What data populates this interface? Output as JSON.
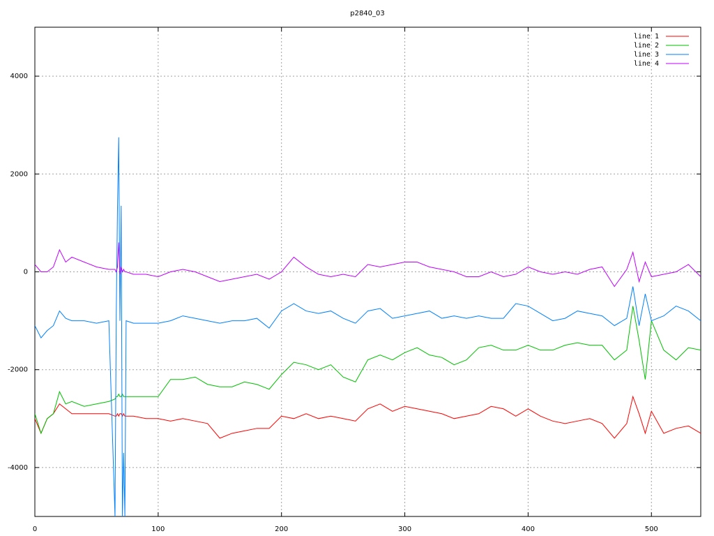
{
  "chart_data": {
    "type": "line",
    "title": "p2840_03",
    "x": [
      0,
      5,
      10,
      15,
      20,
      25,
      30,
      40,
      50,
      60,
      65,
      66,
      67,
      68,
      69,
      70,
      71,
      72,
      73,
      74,
      80,
      90,
      100,
      110,
      120,
      130,
      140,
      150,
      160,
      170,
      180,
      190,
      200,
      210,
      220,
      230,
      240,
      250,
      260,
      270,
      280,
      290,
      300,
      310,
      320,
      330,
      340,
      350,
      360,
      370,
      380,
      390,
      400,
      410,
      420,
      430,
      440,
      450,
      460,
      470,
      480,
      485,
      490,
      495,
      500,
      510,
      520,
      530,
      540
    ],
    "series": [
      {
        "name": "line 1",
        "color": "#ff0000",
        "values": [
          -3000,
          -3300,
          -3000,
          -2900,
          -2700,
          -2800,
          -2900,
          -2900,
          -2900,
          -2900,
          -2950,
          -2950,
          -2900,
          -2950,
          -2900,
          -2900,
          -2950,
          -2900,
          -2950,
          -2950,
          -2950,
          -3000,
          -3000,
          -3050,
          -3000,
          -3050,
          -3100,
          -3400,
          -3300,
          -3250,
          -3200,
          -3200,
          -2950,
          -3000,
          -2900,
          -3000,
          -2950,
          -3000,
          -3050,
          -2800,
          -2700,
          -2850,
          -2750,
          -2800,
          -2850,
          -2900,
          -3000,
          -2950,
          -2900,
          -2750,
          -2800,
          -2950,
          -2800,
          -2950,
          -3050,
          -3100,
          -3050,
          -3000,
          -3100,
          -3400,
          -3100,
          -2550,
          -2900,
          -3300,
          -2850,
          -3300,
          -3200,
          -3150,
          -3300
        ]
      },
      {
        "name": "line 2",
        "color": "#00c000",
        "values": [
          -2900,
          -3300,
          -3000,
          -2900,
          -2450,
          -2700,
          -2650,
          -2750,
          -2700,
          -2650,
          -2600,
          -2550,
          -2550,
          -2500,
          -2550,
          -2550,
          -2500,
          -2550,
          -2550,
          -2550,
          -2550,
          -2550,
          -2550,
          -2200,
          -2200,
          -2150,
          -2300,
          -2350,
          -2350,
          -2250,
          -2300,
          -2400,
          -2100,
          -1850,
          -1900,
          -2000,
          -1900,
          -2150,
          -2250,
          -1800,
          -1700,
          -1800,
          -1650,
          -1550,
          -1700,
          -1750,
          -1900,
          -1800,
          -1550,
          -1500,
          -1600,
          -1600,
          -1500,
          -1600,
          -1600,
          -1500,
          -1450,
          -1500,
          -1500,
          -1800,
          -1600,
          -700,
          -1400,
          -2200,
          -1000,
          -1600,
          -1800,
          -1550,
          -1600
        ]
      },
      {
        "name": "line 3",
        "color": "#0080ff",
        "values": [
          -1100,
          -1350,
          -1200,
          -1100,
          -800,
          -950,
          -1000,
          -1000,
          -1050,
          -1000,
          -5000,
          -900,
          1300,
          2750,
          -1000,
          1350,
          -5000,
          -3700,
          -5000,
          -1000,
          -1050,
          -1050,
          -1050,
          -1000,
          -900,
          -950,
          -1000,
          -1050,
          -1000,
          -1000,
          -950,
          -1150,
          -800,
          -650,
          -800,
          -850,
          -800,
          -950,
          -1050,
          -800,
          -750,
          -950,
          -900,
          -850,
          -800,
          -950,
          -900,
          -950,
          -900,
          -950,
          -950,
          -650,
          -700,
          -850,
          -1000,
          -950,
          -800,
          -850,
          -900,
          -1100,
          -950,
          -300,
          -1100,
          -450,
          -1000,
          -900,
          -700,
          -800,
          -1000
        ]
      },
      {
        "name": "line 4",
        "color": "#c000ff",
        "values": [
          150,
          0,
          0,
          100,
          450,
          200,
          300,
          200,
          100,
          50,
          50,
          0,
          100,
          600,
          -50,
          100,
          0,
          50,
          0,
          0,
          -50,
          -50,
          -100,
          0,
          50,
          0,
          -100,
          -200,
          -150,
          -100,
          -50,
          -150,
          0,
          300,
          100,
          -50,
          -100,
          -50,
          -100,
          150,
          100,
          150,
          200,
          200,
          100,
          50,
          0,
          -100,
          -100,
          0,
          -100,
          -50,
          100,
          0,
          -50,
          0,
          -50,
          50,
          100,
          -300,
          50,
          400,
          -200,
          200,
          -100,
          -50,
          0,
          150,
          -100
        ]
      }
    ],
    "xlim": [
      0,
      540
    ],
    "ylim": [
      -5000,
      5000
    ],
    "xticks": [
      0,
      100,
      200,
      300,
      400,
      500
    ],
    "yticks": [
      -4000,
      -2000,
      0,
      2000,
      4000
    ],
    "grid": true,
    "legend": "top-right"
  }
}
